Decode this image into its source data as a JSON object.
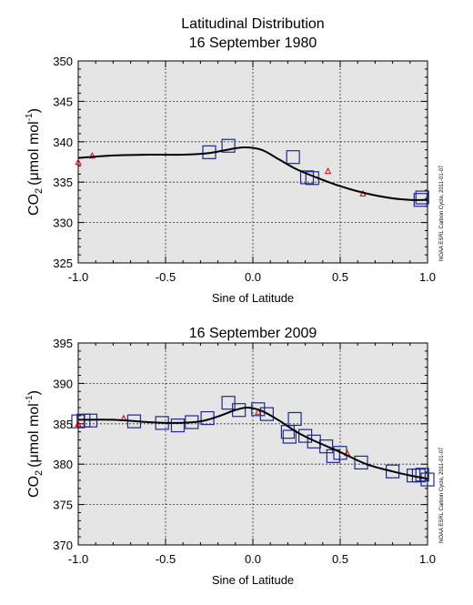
{
  "chart_data": [
    {
      "type": "scatter",
      "title_line1": "Latitudinal Distribution",
      "title_line2": "16 September 1980",
      "xlabel": "Sine of Latitude",
      "ylabel_main": "CO",
      "ylabel_sub": "2",
      "ylabel_unit": "(μmol mol",
      "ylabel_sup": "-1",
      "ylabel_close": ")",
      "xlim": [
        -1.0,
        1.0
      ],
      "ylim": [
        325,
        350
      ],
      "xticks": [
        -1.0,
        -0.5,
        0.0,
        0.5,
        1.0
      ],
      "xtick_labels": [
        "-1.0",
        "-0.5",
        "0.0",
        "0.5",
        "1.0"
      ],
      "yticks": [
        325,
        330,
        335,
        340,
        345,
        350
      ],
      "ytick_labels": [
        "325",
        "330",
        "335",
        "340",
        "345",
        "350"
      ],
      "grid": true,
      "credit": "NOAA ESRL Carbon Cycle, 2011-01-07",
      "colors": {
        "plot_bg": "#e5e5e5",
        "squares": "#1f2a8c",
        "triangles": "#e00000",
        "curve": "#000000"
      },
      "series": [
        {
          "marker": "square",
          "x": [
            -0.25,
            -0.14,
            0.23,
            0.31,
            0.34,
            0.96,
            0.97
          ],
          "y": [
            338.7,
            339.5,
            338.1,
            335.6,
            335.5,
            332.8,
            333.1
          ]
        },
        {
          "marker": "triangle",
          "x": [
            -1.0,
            -0.92,
            0.43,
            0.63
          ],
          "y": [
            337.5,
            338.3,
            336.4,
            333.6
          ]
        },
        {
          "marker": "curve",
          "x": [
            -1.0,
            -0.8,
            -0.6,
            -0.4,
            -0.25,
            -0.15,
            -0.05,
            0.05,
            0.15,
            0.25,
            0.35,
            0.5,
            0.65,
            0.8,
            0.9,
            1.0
          ],
          "y": [
            338.0,
            338.3,
            338.4,
            338.4,
            338.6,
            339.0,
            339.3,
            339.0,
            337.8,
            336.6,
            335.7,
            334.5,
            333.6,
            333.0,
            332.8,
            332.8
          ]
        }
      ]
    },
    {
      "type": "scatter",
      "title_line1": "16 September 2009",
      "title_line2": "",
      "xlabel": "Sine of Latitude",
      "ylabel_main": "CO",
      "ylabel_sub": "2",
      "ylabel_unit": "(μmol mol",
      "ylabel_sup": "-1",
      "ylabel_close": ")",
      "xlim": [
        -1.0,
        1.0
      ],
      "ylim": [
        370,
        395
      ],
      "xticks": [
        -1.0,
        -0.5,
        0.0,
        0.5,
        1.0
      ],
      "xtick_labels": [
        "-1.0",
        "-0.5",
        "0.0",
        "0.5",
        "1.0"
      ],
      "yticks": [
        370,
        375,
        380,
        385,
        390,
        395
      ],
      "ytick_labels": [
        "370",
        "375",
        "380",
        "385",
        "390",
        "395"
      ],
      "grid": true,
      "credit": "NOAA ESRL Carbon Cycle, 2011-01-07",
      "colors": {
        "plot_bg": "#e5e5e5",
        "squares": "#1f2a8c",
        "triangles": "#e00000",
        "curve": "#000000"
      },
      "series": [
        {
          "marker": "square",
          "x": [
            -1.0,
            -0.97,
            -0.93,
            -0.68,
            -0.52,
            -0.43,
            -0.35,
            -0.26,
            -0.14,
            -0.08,
            0.03,
            0.08,
            0.2,
            0.21,
            0.24,
            0.3,
            0.35,
            0.42,
            0.46,
            0.5,
            0.62,
            0.8,
            0.92,
            0.95,
            0.97,
            1.0
          ],
          "y": [
            385.3,
            385.4,
            385.4,
            385.3,
            385.1,
            384.8,
            385.2,
            385.7,
            387.6,
            386.7,
            386.8,
            386.2,
            384.0,
            383.4,
            385.6,
            383.5,
            382.8,
            382.2,
            381.0,
            381.4,
            380.2,
            379.1,
            378.6,
            378.6,
            378.7,
            378.1
          ]
        },
        {
          "marker": "triangle",
          "x": [
            -1.0,
            -0.74,
            0.03,
            0.54
          ],
          "y": [
            385.0,
            385.7,
            386.5,
            381.4
          ]
        },
        {
          "marker": "curve",
          "x": [
            -1.0,
            -0.8,
            -0.6,
            -0.45,
            -0.3,
            -0.2,
            -0.1,
            -0.03,
            0.05,
            0.15,
            0.25,
            0.35,
            0.5,
            0.65,
            0.8,
            0.9,
            1.0
          ],
          "y": [
            385.5,
            385.5,
            385.2,
            385.1,
            385.3,
            385.9,
            386.7,
            387.0,
            386.6,
            385.4,
            384.0,
            382.9,
            381.5,
            380.0,
            379.1,
            378.6,
            378.2
          ]
        }
      ]
    }
  ]
}
